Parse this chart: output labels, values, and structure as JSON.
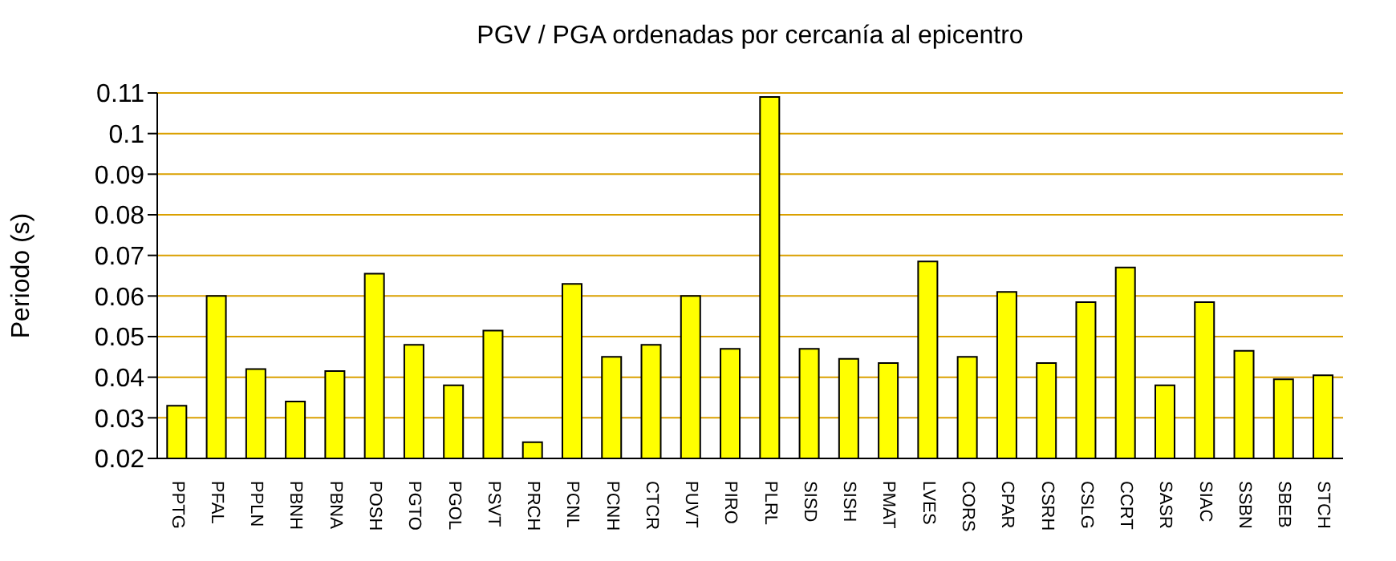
{
  "chart_data": {
    "type": "bar",
    "title": "PGV / PGA ordenadas por cercanía al epicentro",
    "ylabel": "Periodo (s)",
    "categories": [
      "PPTG",
      "PFAL",
      "PPLN",
      "PBNH",
      "PBNA",
      "POSH",
      "PGTO",
      "PGOL",
      "PSVT",
      "PRCH",
      "PCNL",
      "PCNH",
      "CTCR",
      "PUVT",
      "PIRO",
      "PLRL",
      "SISD",
      "SISH",
      "PMAT",
      "LVES",
      "CORS",
      "CPAR",
      "CSRH",
      "CSLG",
      "CCRT",
      "SASR",
      "SIAC",
      "SSBN",
      "SBEB",
      "STCH"
    ],
    "values": [
      0.033,
      0.06,
      0.042,
      0.034,
      0.0415,
      0.0655,
      0.048,
      0.038,
      0.0515,
      0.024,
      0.063,
      0.045,
      0.048,
      0.06,
      0.047,
      0.109,
      0.047,
      0.0445,
      0.0435,
      0.0685,
      0.045,
      0.061,
      0.0435,
      0.0585,
      0.067,
      0.038,
      0.0585,
      0.0465,
      0.0395,
      0.0405
    ],
    "color": "#ffff00",
    "ylim": [
      0.02,
      0.11
    ],
    "yticks": [
      0.02,
      0.03,
      0.04,
      0.05,
      0.06,
      0.07,
      0.08,
      0.09,
      0.1,
      0.11
    ],
    "grid": "y"
  }
}
